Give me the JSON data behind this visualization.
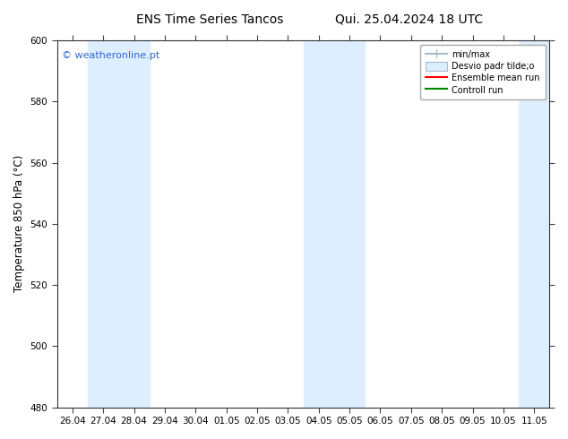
{
  "title_left": "ENS Time Series Tancos",
  "title_right": "Qui. 25.04.2024 18 UTC",
  "ylabel": "Temperature 850 hPa (°C)",
  "ylim": [
    480,
    600
  ],
  "yticks": [
    480,
    500,
    520,
    540,
    560,
    580,
    600
  ],
  "x_labels": [
    "26.04",
    "27.04",
    "28.04",
    "29.04",
    "30.04",
    "01.05",
    "02.05",
    "03.05",
    "04.05",
    "05.05",
    "06.05",
    "07.05",
    "08.05",
    "09.05",
    "10.05",
    "11.05"
  ],
  "shade_indices": [
    1,
    2,
    8,
    9,
    15
  ],
  "band_color": "#ddeeff",
  "background_color": "#ffffff",
  "watermark": "© weatheronline.pt",
  "watermark_color": "#3366cc",
  "title_fontsize": 10,
  "tick_fontsize": 7.5,
  "ylabel_fontsize": 8.5,
  "legend_label_minmax": "min/max",
  "legend_label_desvio": "Desvio padr tilde;o",
  "legend_label_ensemble": "Ensemble mean run",
  "legend_label_control": "Controll run",
  "legend_color_minmax": "#aabbcc",
  "legend_color_desvio": "#ccddee",
  "legend_color_ensemble": "#ff0000",
  "legend_color_control": "#008800"
}
